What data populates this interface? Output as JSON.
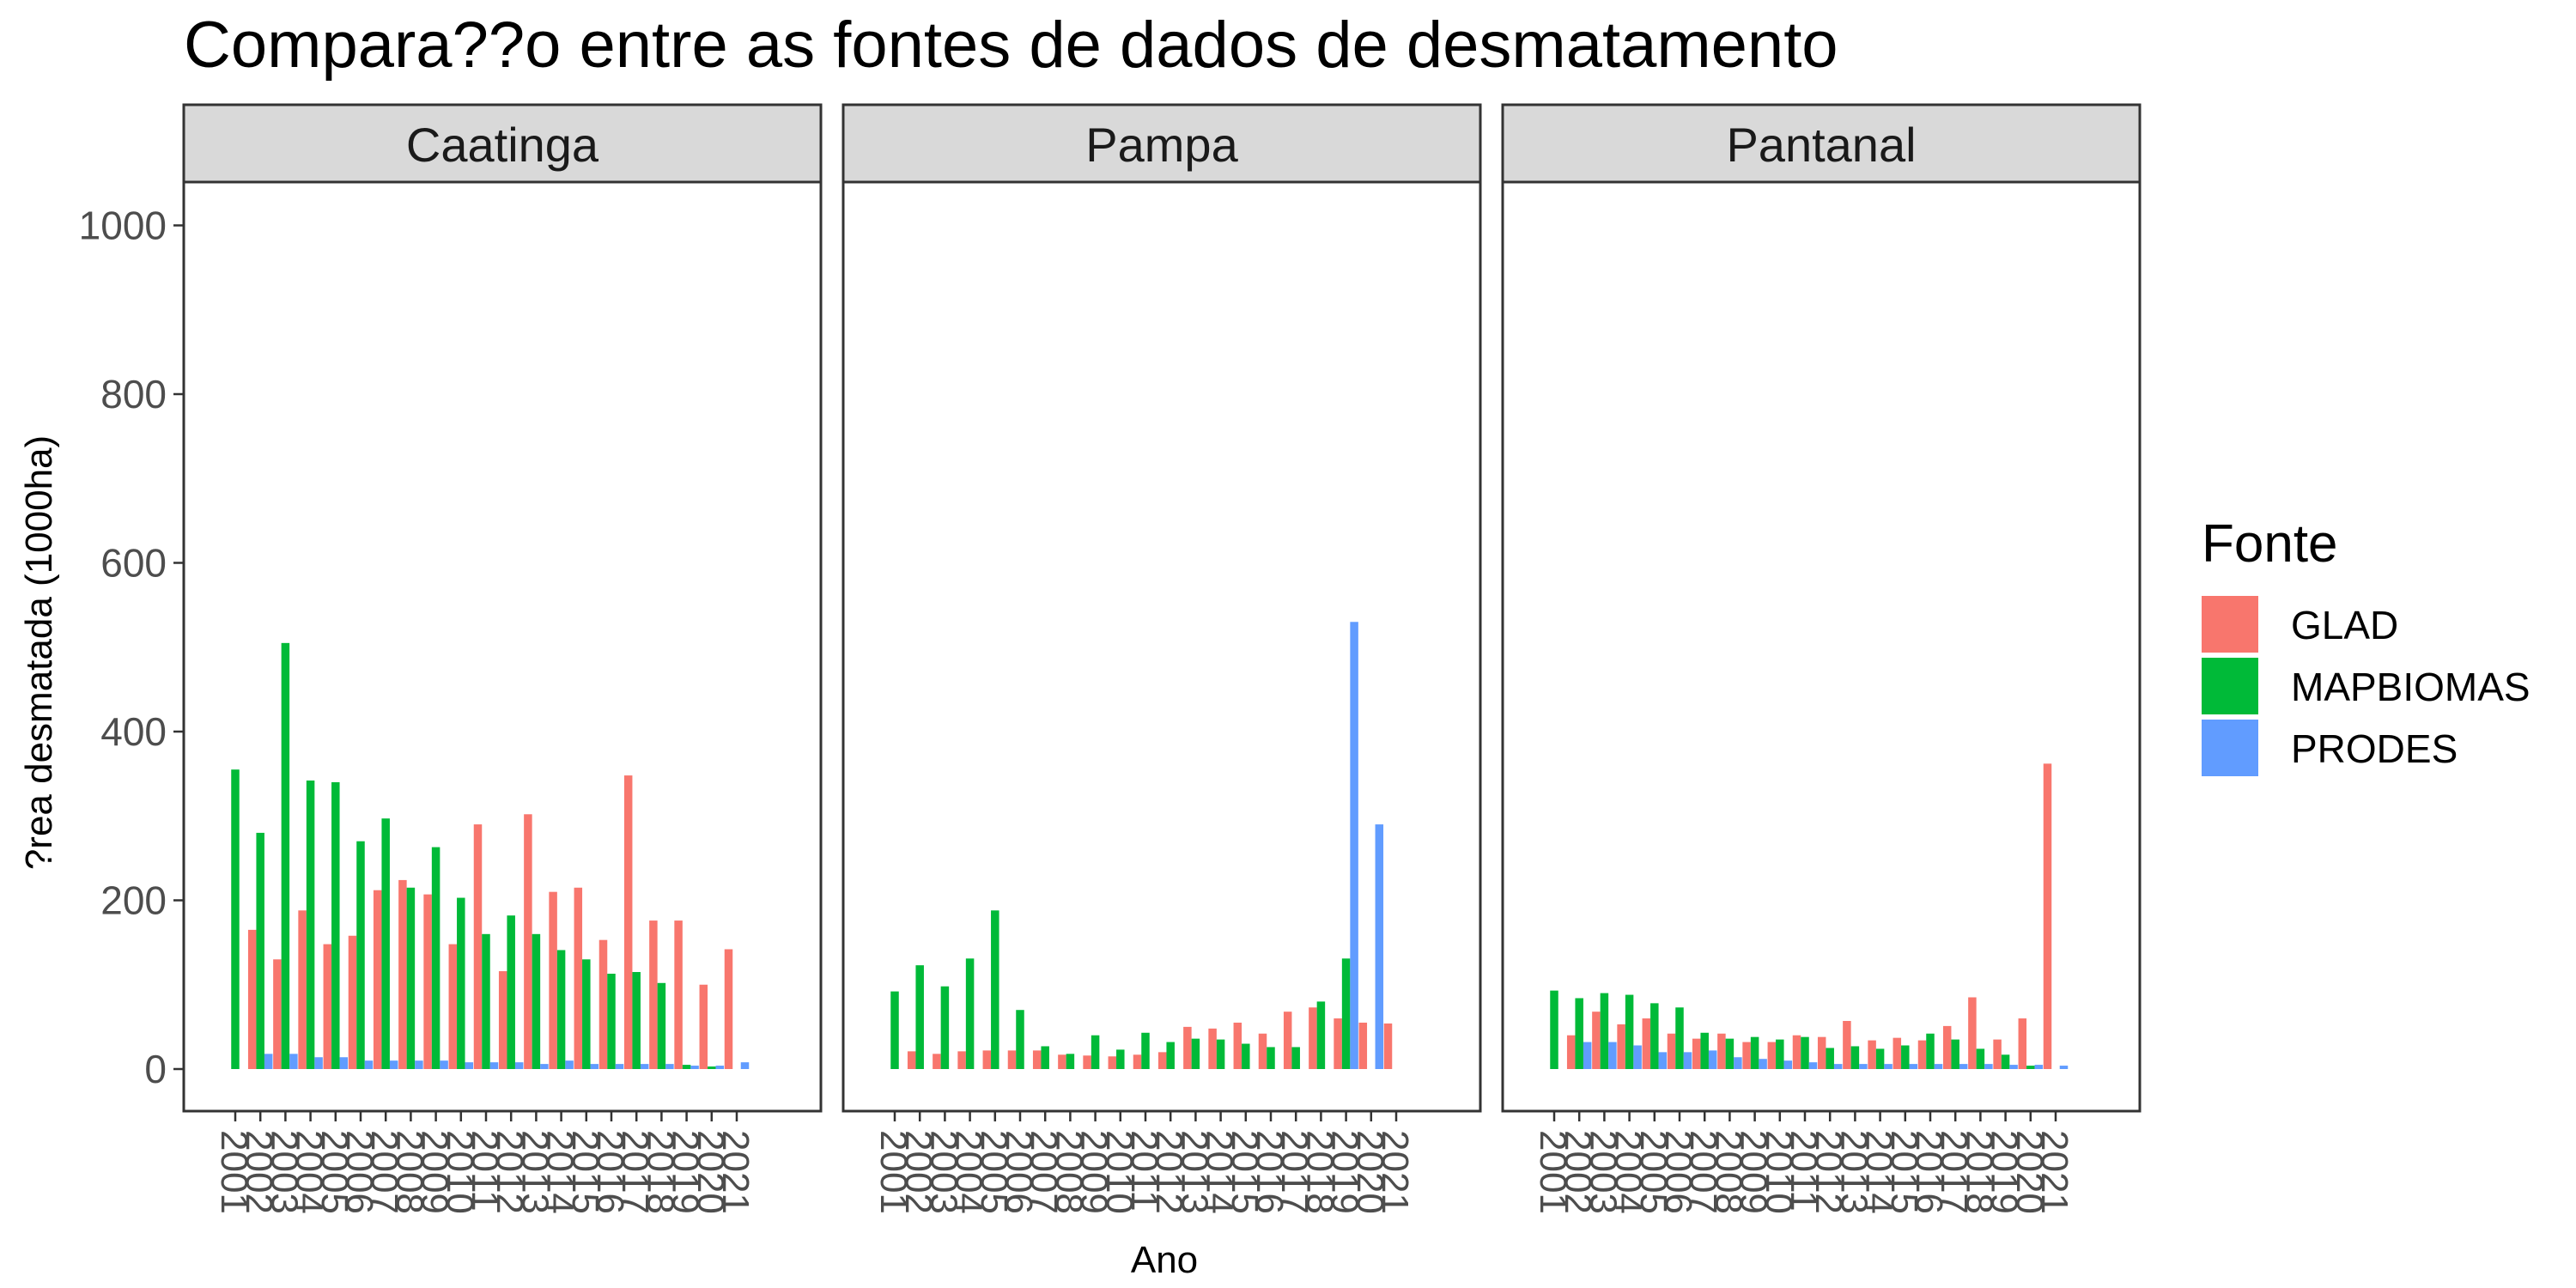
{
  "chart_data": {
    "type": "bar",
    "title": "Compara??o entre as fontes de dados de desmatamento",
    "xlabel": "Ano",
    "ylabel": "?rea desmatada (1000ha)",
    "ylim": [
      0,
      1050
    ],
    "yticks": [
      0,
      200,
      400,
      600,
      800,
      1000
    ],
    "grid": false,
    "legend_title": "Fonte",
    "legend_position": "right",
    "colors": {
      "GLAD": "#F8766D",
      "MAPBIOMAS": "#00BA38",
      "PRODES": "#619CFF"
    },
    "x": [
      2001,
      2002,
      2003,
      2004,
      2005,
      2006,
      2007,
      2008,
      2009,
      2010,
      2011,
      2012,
      2013,
      2014,
      2015,
      2016,
      2017,
      2018,
      2019,
      2020,
      2021
    ],
    "x_labels": [
      "2001",
      "2002",
      "2003",
      "2004",
      "2005",
      "2006",
      "2007",
      "2008",
      "2009",
      "2010",
      "2011",
      "2012",
      "2013",
      "2014",
      "2015",
      "2016",
      "2017",
      "2018",
      "2019",
      "2020",
      "2021"
    ],
    "facets": [
      {
        "name": "Caatinga",
        "series": [
          {
            "name": "GLAD",
            "values": [
              null,
              165,
              130,
              188,
              148,
              158,
              212,
              224,
              207,
              148,
              290,
              116,
              302,
              210,
              215,
              153,
              348,
              176,
              176,
              100,
              142
            ]
          },
          {
            "name": "MAPBIOMAS",
            "values": [
              355,
              280,
              505,
              342,
              340,
              270,
              297,
              215,
              263,
              203,
              160,
              182,
              160,
              141,
              130,
              113,
              115,
              102,
              5,
              3,
              null
            ]
          },
          {
            "name": "PRODES",
            "values": [
              null,
              18,
              18,
              14,
              14,
              10,
              10,
              10,
              10,
              8,
              8,
              8,
              6,
              10,
              6,
              6,
              6,
              6,
              4,
              4,
              8
            ]
          }
        ]
      },
      {
        "name": "Pampa",
        "series": [
          {
            "name": "GLAD",
            "values": [
              null,
              21,
              18,
              21,
              22,
              22,
              22,
              17,
              16,
              15,
              17,
              20,
              50,
              48,
              55,
              42,
              68,
              73,
              60,
              55,
              54
            ]
          },
          {
            "name": "MAPBIOMAS",
            "values": [
              92,
              123,
              98,
              131,
              188,
              70,
              27,
              18,
              40,
              23,
              43,
              32,
              36,
              35,
              30,
              26,
              26,
              80,
              131,
              null,
              null
            ]
          },
          {
            "name": "PRODES",
            "values": [
              null,
              null,
              null,
              null,
              null,
              null,
              null,
              null,
              null,
              null,
              null,
              null,
              null,
              null,
              null,
              null,
              null,
              null,
              530,
              290,
              null
            ]
          }
        ]
      },
      {
        "name": "Pantanal",
        "series": [
          {
            "name": "GLAD",
            "values": [
              null,
              40,
              68,
              53,
              60,
              42,
              36,
              42,
              32,
              32,
              40,
              38,
              57,
              34,
              37,
              34,
              51,
              85,
              35,
              60,
              362
            ]
          },
          {
            "name": "MAPBIOMAS",
            "values": [
              93,
              84,
              90,
              88,
              78,
              73,
              43,
              36,
              38,
              35,
              38,
              25,
              27,
              24,
              28,
              42,
              35,
              24,
              17,
              4,
              null
            ]
          },
          {
            "name": "PRODES",
            "values": [
              null,
              32,
              32,
              28,
              20,
              20,
              22,
              14,
              12,
              10,
              8,
              6,
              6,
              6,
              6,
              6,
              6,
              6,
              5,
              5,
              4
            ]
          }
        ]
      }
    ]
  }
}
